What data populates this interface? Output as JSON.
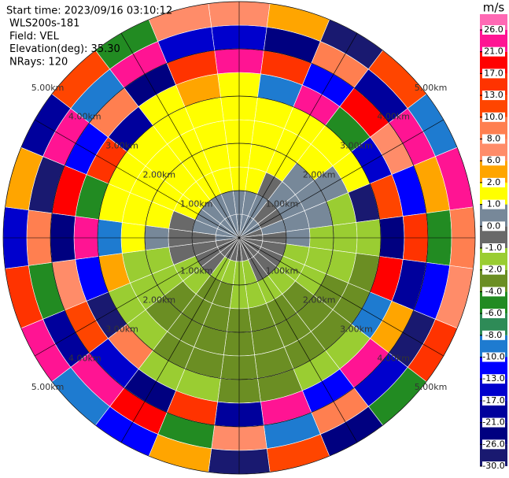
{
  "chart_data": {
    "type": "radar",
    "header": [
      "Start time: 2023/09/16 03:10:12",
      "WLS200s-181",
      "Field: VEL",
      "Elevation(deg): 35.30",
      "NRays: 120"
    ],
    "colorbar": {
      "label": "m/s",
      "ticks": [
        {
          "value": -30,
          "label": "-30.0"
        },
        {
          "value": -26,
          "label": "-26.0"
        },
        {
          "value": -21,
          "label": "-21.0"
        },
        {
          "value": -17,
          "label": "-17.0"
        },
        {
          "value": -13,
          "label": "-13.0"
        },
        {
          "value": -10,
          "label": "-10.0"
        },
        {
          "value": -8,
          "label": "-8.0"
        },
        {
          "value": -6,
          "label": "-6.0"
        },
        {
          "value": -4,
          "label": "-4.0"
        },
        {
          "value": -2,
          "label": "-2.0"
        },
        {
          "value": -1,
          "label": "-1.0"
        },
        {
          "value": 0,
          "label": "0.0"
        },
        {
          "value": 1,
          "label": "1.0"
        },
        {
          "value": 2,
          "label": "2.0"
        },
        {
          "value": 6,
          "label": "6.0"
        },
        {
          "value": 8,
          "label": "8.0"
        },
        {
          "value": 10,
          "label": "10.0"
        },
        {
          "value": 13,
          "label": "13.0"
        },
        {
          "value": 17,
          "label": "17.0"
        },
        {
          "value": 21,
          "label": "21.0"
        },
        {
          "value": 26,
          "label": "26.0"
        }
      ],
      "colors": [
        "#191970",
        "#000080",
        "#00009c",
        "#0000cd",
        "#0000ff",
        "#1e7bd0",
        "#2e8b57",
        "#228b22",
        "#6b8e23",
        "#9acd32",
        "#696969",
        "#778899",
        "#ffff00",
        "#ffa500",
        "#ff8c69",
        "#ff7f50",
        "#ff4500",
        "#ff3300",
        "#ff0000",
        "#ff1493",
        "#ff69b4"
      ]
    },
    "rings": [
      {
        "value": 1,
        "label": "1.00km"
      },
      {
        "value": 2,
        "label": "2.00km"
      },
      {
        "value": 3,
        "label": "3.00km"
      },
      {
        "value": 4,
        "label": "4.00km"
      },
      {
        "value": 5,
        "label": "5.00km"
      }
    ],
    "gates_km": [
      0,
      0.5,
      1,
      1.5,
      2,
      2.5,
      3,
      3.5,
      4,
      4.5,
      5
    ],
    "azimuths": [
      0,
      15,
      30,
      45,
      60,
      75,
      90,
      105,
      120,
      135,
      150,
      165,
      180,
      195,
      210,
      225,
      240,
      255,
      270,
      285,
      300,
      315,
      330,
      345
    ],
    "values": [
      [
        0.5,
        0.5,
        1.5,
        1.5,
        1.5,
        1.5,
        1.5,
        22,
        -15,
        7
      ],
      [
        0.5,
        0.5,
        1.5,
        1.5,
        1.5,
        1.5,
        -9,
        15,
        -23,
        3
      ],
      [
        0.5,
        0.5,
        -0.5,
        1.5,
        1.5,
        1.5,
        24,
        -12,
        9,
        -28
      ],
      [
        0.5,
        -0.5,
        0.5,
        0.5,
        1.5,
        1.5,
        -5,
        19,
        -19,
        11
      ],
      [
        0.5,
        -0.5,
        0.5,
        0.5,
        0.5,
        1.5,
        -15,
        7,
        24,
        -9
      ],
      [
        -0.5,
        0.5,
        0.5,
        0.5,
        -1.5,
        -28,
        11,
        -12,
        3,
        22
      ],
      [
        -0.5,
        -0.5,
        0.5,
        -1.5,
        -1.5,
        -1.5,
        -23,
        15,
        -5,
        9
      ],
      [
        -0.5,
        -0.5,
        -1.5,
        -1.5,
        -1.5,
        -3,
        19,
        -19,
        -12,
        7
      ],
      [
        -0.5,
        -0.5,
        -1.5,
        -1.5,
        -3,
        -3,
        -9,
        3,
        -28,
        15
      ],
      [
        -0.5,
        -0.5,
        -1.5,
        -3,
        -3,
        -3,
        -1.5,
        22,
        -15,
        -5
      ],
      [
        -0.5,
        -0.5,
        -1.5,
        -3,
        -3,
        -3,
        -1.5,
        -12,
        9,
        -23
      ],
      [
        -0.5,
        -1.5,
        -1.5,
        -3,
        -3,
        -3,
        -3,
        24,
        -9,
        11
      ],
      [
        -0.5,
        -1.5,
        -1.5,
        -3,
        -3,
        -3,
        -3,
        -19,
        7,
        -28
      ],
      [
        -0.5,
        -1.5,
        -3,
        -3,
        -3,
        -3,
        -1.5,
        15,
        -5,
        3
      ],
      [
        -0.5,
        -1.5,
        -3,
        -3,
        -3,
        -3,
        -1.5,
        -23,
        19,
        -12
      ],
      [
        -0.5,
        -0.5,
        -1.5,
        -3,
        -3,
        -1.5,
        9,
        -15,
        22,
        -9
      ],
      [
        -0.5,
        -0.5,
        -1.5,
        -1.5,
        -1.5,
        -1.5,
        -28,
        11,
        -19,
        24
      ],
      [
        -0.5,
        -0.5,
        -0.5,
        -1.5,
        -1.5,
        3,
        -12,
        7,
        -5,
        15
      ],
      [
        0.5,
        -0.5,
        -0.5,
        0.5,
        1.5,
        -9,
        22,
        -23,
        9,
        -15
      ],
      [
        0.5,
        0.5,
        -0.5,
        1.5,
        1.5,
        1.5,
        -5,
        19,
        -28,
        3
      ],
      [
        0.5,
        0.5,
        1.5,
        1.5,
        1.5,
        1.5,
        15,
        -12,
        24,
        -19
      ],
      [
        0.5,
        0.5,
        1.5,
        1.5,
        1.5,
        1.5,
        -19,
        9,
        -9,
        11
      ],
      [
        0.5,
        0.5,
        1.5,
        1.5,
        1.5,
        1.5,
        1.5,
        -23,
        22,
        -5
      ],
      [
        0.5,
        0.5,
        1.5,
        1.5,
        1.5,
        1.5,
        3,
        15,
        -15,
        7
      ]
    ]
  }
}
